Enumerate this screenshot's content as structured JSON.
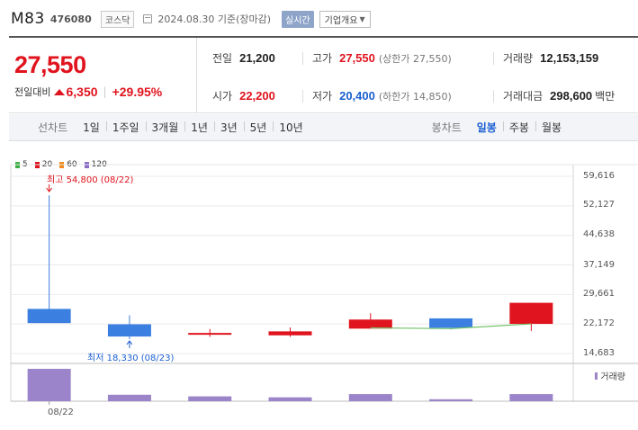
{
  "header": {
    "name": "M83",
    "code": "476080",
    "market": "코스닥",
    "date": "2024.08.30",
    "date_suffix": "기준(장마감)",
    "realtime": "실시간",
    "company_info": "기업개요"
  },
  "summary": {
    "price": "27,550",
    "change_label": "전일대비",
    "change_amount": "6,350",
    "change_pct": "+29.95%",
    "prev_close": {
      "label": "전일",
      "value": "21,200"
    },
    "high": {
      "label": "고가",
      "value": "27,550",
      "sub": "(상한가 27,550)"
    },
    "volume": {
      "label": "거래량",
      "value": "12,153,159"
    },
    "open": {
      "label": "시가",
      "value": "22,200"
    },
    "low": {
      "label": "저가",
      "value": "20,400",
      "sub": "(하한가 14,850)"
    },
    "amount": {
      "label": "거래대금",
      "value": "298,600",
      "unit": "백만"
    }
  },
  "tabs": {
    "line_label": "선차트",
    "line_periods": [
      "1일",
      "1주일",
      "3개월",
      "1년",
      "3년",
      "5년",
      "10년"
    ],
    "candle_label": "봉차트",
    "candle_periods": [
      "일봉",
      "주봉",
      "월봉"
    ],
    "active_candle": "일봉"
  },
  "chart_data": {
    "type": "candlestick",
    "legend": [
      {
        "label": "5",
        "color": "#3cb043"
      },
      {
        "label": "20",
        "color": "#e0141e"
      },
      {
        "label": "60",
        "color": "#f08c1e"
      },
      {
        "label": "120",
        "color": "#8a6cc7"
      }
    ],
    "y_ticks": [
      "59,616",
      "52,127",
      "44,638",
      "37,149",
      "29,661",
      "22,172",
      "14,683"
    ],
    "ylim": [
      14683,
      59616
    ],
    "x_labels": [
      "08/22"
    ],
    "high_annotation": "최고 54,800 (08/22)",
    "low_annotation": "최저 18,330 (08/23)",
    "candles": [
      {
        "open": 26000,
        "close": 22400,
        "high": 54800,
        "low": 22400,
        "color": "#3b7fe0"
      },
      {
        "open": 22100,
        "close": 19000,
        "high": 24400,
        "low": 18330,
        "color": "#3b7fe0"
      },
      {
        "open": 19600,
        "close": 19900,
        "high": 20900,
        "low": 18900,
        "color": "#e0141e"
      },
      {
        "open": 19300,
        "close": 20300,
        "high": 21300,
        "low": 18900,
        "color": "#e0141e"
      },
      {
        "open": 21000,
        "close": 23300,
        "high": 24900,
        "low": 21000,
        "color": "#e0141e"
      },
      {
        "open": 23600,
        "close": 21200,
        "high": 23600,
        "low": 20800,
        "color": "#3b7fe0"
      },
      {
        "open": 22200,
        "close": 27550,
        "high": 27550,
        "low": 20400,
        "color": "#e0141e"
      }
    ],
    "ma5": [
      null,
      null,
      null,
      null,
      21200,
      21000,
      22200
    ],
    "ma5_color": "#6fc266",
    "volume_legend": "거래량",
    "volume_color": "#9b84c9",
    "volumes": [
      1.0,
      0.2,
      0.15,
      0.12,
      0.22,
      0.06,
      0.22
    ]
  }
}
